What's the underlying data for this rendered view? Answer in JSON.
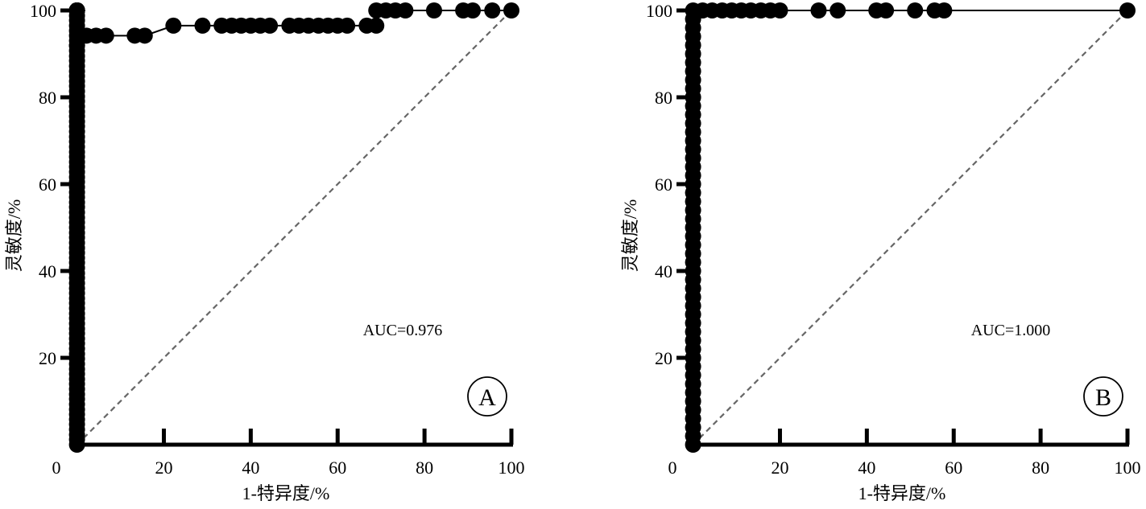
{
  "chart_data": [
    {
      "type": "line",
      "panel_label": "A",
      "annotation": "AUC=0.976",
      "xlabel": "1-特异度/%",
      "ylabel": "灵敏度/%",
      "xlim": [
        0,
        100
      ],
      "ylim": [
        0,
        100
      ],
      "x_ticks": [
        0,
        20,
        40,
        60,
        80,
        100
      ],
      "x_tick_labels": [
        "0",
        "20",
        "40",
        "60",
        "80",
        "100"
      ],
      "y_ticks": [
        20,
        40,
        60,
        80,
        100
      ],
      "y_tick_labels": [
        "20",
        "40",
        "60",
        "80",
        "100"
      ],
      "reference_line": [
        [
          0,
          0
        ],
        [
          100,
          100
        ]
      ],
      "grid": false,
      "legend": "none",
      "series": [
        {
          "x": [
            0,
            0,
            0,
            0,
            0,
            0,
            0,
            0,
            0,
            0,
            0,
            0,
            0,
            0,
            0,
            0,
            0,
            0,
            0,
            0,
            0,
            0,
            0,
            0,
            0,
            0,
            0,
            0,
            0,
            0,
            0,
            0,
            0,
            0,
            0,
            0,
            0,
            0,
            0,
            0,
            0,
            0,
            0,
            0,
            0,
            0,
            0,
            0,
            0,
            0,
            0,
            0,
            0,
            0,
            0,
            0,
            0,
            0,
            0,
            0,
            0,
            0,
            0,
            0,
            0,
            0,
            0,
            0,
            0,
            0,
            0,
            0,
            0,
            0,
            0,
            0,
            0,
            0,
            0,
            0,
            0,
            0,
            0,
            0,
            0,
            0,
            0,
            0,
            0,
            0,
            0,
            0,
            0,
            0,
            0,
            0,
            0,
            0,
            0,
            0,
            0,
            2.2,
            4.4,
            6.7,
            13.3,
            15.6,
            22.2,
            28.9,
            33.3,
            35.6,
            37.8,
            40.0,
            42.2,
            44.4,
            48.9,
            51.1,
            53.3,
            55.6,
            57.8,
            60.0,
            62.2,
            66.7,
            68.9,
            68.9,
            71.1,
            73.3,
            75.6,
            82.2,
            88.9,
            91.1,
            95.6,
            100
          ],
          "y": [
            0,
            1.2,
            2.3,
            3.5,
            4.7,
            5.8,
            7.0,
            8.1,
            9.3,
            10.5,
            11.6,
            12.8,
            14.0,
            15.1,
            16.3,
            17.4,
            18.6,
            19.8,
            20.9,
            22.1,
            23.3,
            24.4,
            25.6,
            26.7,
            27.9,
            29.1,
            30.2,
            31.4,
            32.6,
            33.7,
            34.9,
            36.0,
            37.2,
            38.4,
            39.5,
            40.7,
            41.9,
            43.0,
            44.2,
            45.3,
            46.5,
            47.7,
            48.8,
            50.0,
            51.2,
            52.3,
            53.5,
            54.7,
            55.8,
            57.0,
            58.1,
            59.3,
            60.5,
            61.6,
            62.8,
            64.0,
            65.1,
            66.3,
            67.4,
            68.6,
            69.8,
            70.9,
            72.1,
            73.3,
            74.4,
            75.6,
            76.7,
            77.9,
            79.1,
            80.2,
            81.4,
            82.6,
            83.7,
            84.9,
            86.0,
            87.2,
            88.4,
            89.5,
            90.7,
            91.9,
            93.0,
            94.2,
            95.3,
            96.5,
            97.7,
            98.8,
            100,
            100,
            100,
            100,
            100,
            100,
            100,
            100,
            100,
            100,
            100,
            100,
            100,
            100,
            91.9,
            94.2,
            94.2,
            94.2,
            94.2,
            94.2,
            96.5,
            96.5,
            96.5,
            96.5,
            96.5,
            96.5,
            96.5,
            96.5,
            96.5,
            96.5,
            96.5,
            96.5,
            96.5,
            96.5,
            96.5,
            96.5,
            96.5,
            100,
            100,
            100,
            100,
            100,
            100,
            100,
            100,
            100
          ]
        }
      ]
    },
    {
      "type": "line",
      "panel_label": "B",
      "annotation": "AUC=1.000",
      "xlabel": "1-特异度/%",
      "ylabel": "灵敏度/%",
      "xlim": [
        0,
        100
      ],
      "ylim": [
        0,
        100
      ],
      "x_ticks": [
        0,
        20,
        40,
        60,
        80,
        100
      ],
      "x_tick_labels": [
        "0",
        "20",
        "40",
        "60",
        "80",
        "100"
      ],
      "y_ticks": [
        20,
        40,
        60,
        80,
        100
      ],
      "y_tick_labels": [
        "20",
        "40",
        "60",
        "80",
        "100"
      ],
      "reference_line": [
        [
          0,
          0
        ],
        [
          100,
          100
        ]
      ],
      "grid": false,
      "legend": "none",
      "series": [
        {
          "x": [
            0,
            0,
            0,
            0,
            0,
            0,
            0,
            0,
            0,
            0,
            0,
            0,
            0,
            0,
            0,
            0,
            0,
            0,
            0,
            0,
            0,
            0,
            0,
            0,
            0,
            0,
            0,
            0,
            0,
            0,
            0,
            0,
            0,
            0,
            0,
            0,
            0,
            0,
            0,
            0,
            0,
            0,
            0,
            0,
            0,
            0,
            0,
            0,
            0,
            0,
            0,
            2.2,
            4.4,
            6.7,
            8.9,
            11.1,
            13.3,
            15.6,
            17.8,
            20.0,
            28.9,
            33.3,
            42.2,
            44.4,
            51.1,
            55.6,
            57.8,
            100
          ],
          "y": [
            0,
            2.0,
            4.0,
            6.0,
            8.0,
            10.0,
            12.0,
            14.0,
            16.0,
            18.0,
            20.0,
            22.0,
            24.0,
            26.0,
            28.0,
            30.0,
            32.0,
            34.0,
            36.0,
            38.0,
            40.0,
            42.0,
            44.0,
            46.0,
            48.0,
            50.0,
            52.0,
            54.0,
            56.0,
            58.0,
            60.0,
            62.0,
            64.0,
            66.0,
            68.0,
            70.0,
            72.0,
            74.0,
            76.0,
            78.0,
            80.0,
            82.0,
            84.0,
            86.0,
            88.0,
            90.0,
            92.0,
            94.0,
            96.0,
            98.0,
            100,
            100,
            100,
            100,
            100,
            100,
            100,
            100,
            100,
            100,
            100,
            100,
            100,
            100,
            100,
            100,
            100,
            100
          ]
        }
      ]
    }
  ]
}
